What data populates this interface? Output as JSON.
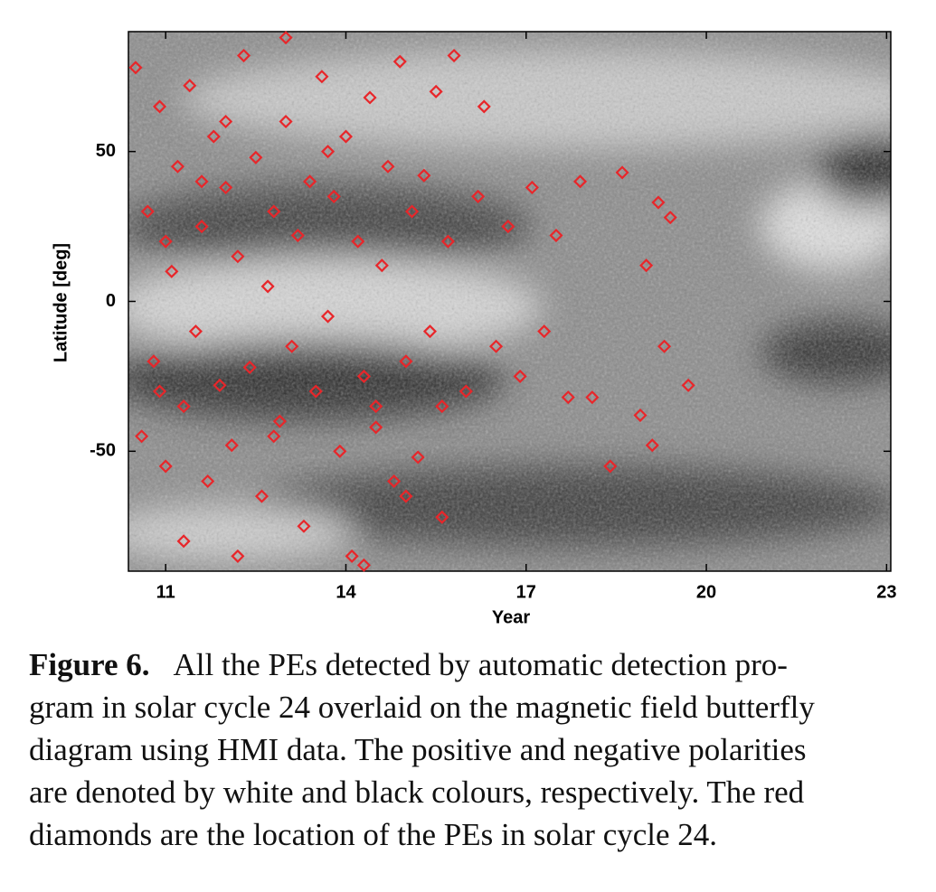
{
  "chart_data": {
    "type": "scatter",
    "xlabel": "Year",
    "ylabel": "Latitude [deg]",
    "xlim": [
      10.38,
      23.07
    ],
    "ylim": [
      -90,
      90
    ],
    "xticks": [
      11,
      14,
      17,
      20,
      23
    ],
    "yticks": [
      50,
      0,
      -50
    ],
    "color": "#e8262a",
    "x": [
      10.5,
      10.6,
      10.7,
      10.8,
      10.9,
      11.0,
      11.1,
      11.2,
      11.3,
      11.4,
      11.5,
      11.6,
      11.7,
      11.8,
      11.9,
      12.0,
      12.1,
      12.2,
      12.3,
      12.4,
      12.5,
      12.6,
      12.7,
      12.8,
      12.9,
      13.0,
      13.1,
      13.2,
      13.3,
      13.4,
      13.5,
      13.6,
      13.7,
      13.8,
      13.9,
      14.0,
      14.1,
      14.2,
      14.3,
      14.4,
      14.5,
      14.6,
      14.7,
      14.8,
      14.9,
      15.0,
      15.1,
      15.2,
      15.3,
      15.4,
      15.5,
      15.6,
      15.7,
      15.8,
      16.0,
      16.2,
      16.3,
      16.5,
      16.7,
      16.9,
      17.1,
      17.3,
      17.5,
      17.7,
      17.9,
      18.1,
      18.4,
      18.6,
      18.9,
      19.1,
      19.2,
      19.3,
      19.4,
      19.7,
      19.0,
      11.3,
      12.2,
      13.0,
      14.3,
      15.0,
      15.6,
      10.9,
      11.6,
      12.8,
      13.7,
      14.5,
      12.0,
      11.0
    ],
    "values": [
      78,
      -45,
      30,
      -20,
      65,
      -55,
      10,
      45,
      -35,
      72,
      -10,
      25,
      -60,
      55,
      -28,
      38,
      -48,
      15,
      82,
      -22,
      48,
      -65,
      5,
      30,
      -40,
      60,
      -15,
      22,
      -75,
      40,
      -30,
      75,
      -5,
      35,
      -50,
      55,
      -85,
      20,
      -25,
      68,
      -42,
      12,
      45,
      -60,
      80,
      -20,
      30,
      -52,
      42,
      -10,
      70,
      -35,
      20,
      82,
      -30,
      35,
      65,
      -15,
      25,
      -25,
      38,
      -10,
      22,
      -32,
      40,
      -32,
      -55,
      43,
      -38,
      -48,
      33,
      -15,
      28,
      -28,
      12,
      -80,
      -85,
      88,
      -88,
      -65,
      -72,
      -30,
      40,
      -45,
      50,
      -35,
      60,
      20
    ]
  },
  "caption": {
    "label": "Figure 6.",
    "lines": [
      "All the PEs detected by automatic detection pro-",
      "gram in solar cycle 24 overlaid on the magnetic field butterfly",
      "diagram using HMI data. The positive and negative polarities",
      "are denoted by white and black colours, respectively. The red",
      "diamonds are the location of the PEs in solar cycle 24."
    ]
  }
}
